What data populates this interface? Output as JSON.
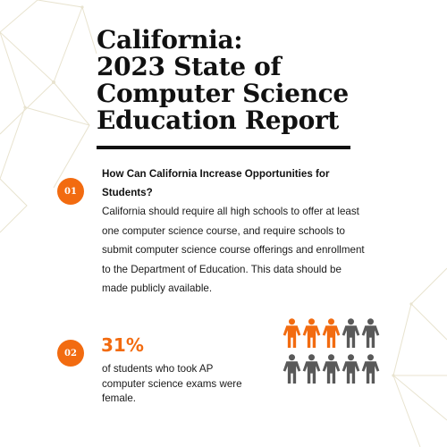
{
  "title": {
    "lines": [
      "California:",
      "2023 State of",
      "Computer Science",
      "Education Report"
    ]
  },
  "section1": {
    "number": "01",
    "heading": "How Can California Increase Opportunities for Students?",
    "body": "California should require all high schools to offer at least one computer science course, and require schools to submit computer science course offerings and enrollment to the Department of Education. This data should be made publicly available."
  },
  "section2": {
    "number": "02",
    "value": "31%",
    "caption": "of students who took AP computer science exams were female."
  },
  "pictograph": {
    "total": 10,
    "highlighted": 3,
    "highlight_color": "#f26b10",
    "base_color": "#595959"
  },
  "colors": {
    "accent": "#f26b10",
    "text": "#111111",
    "background": "#ffffff"
  }
}
